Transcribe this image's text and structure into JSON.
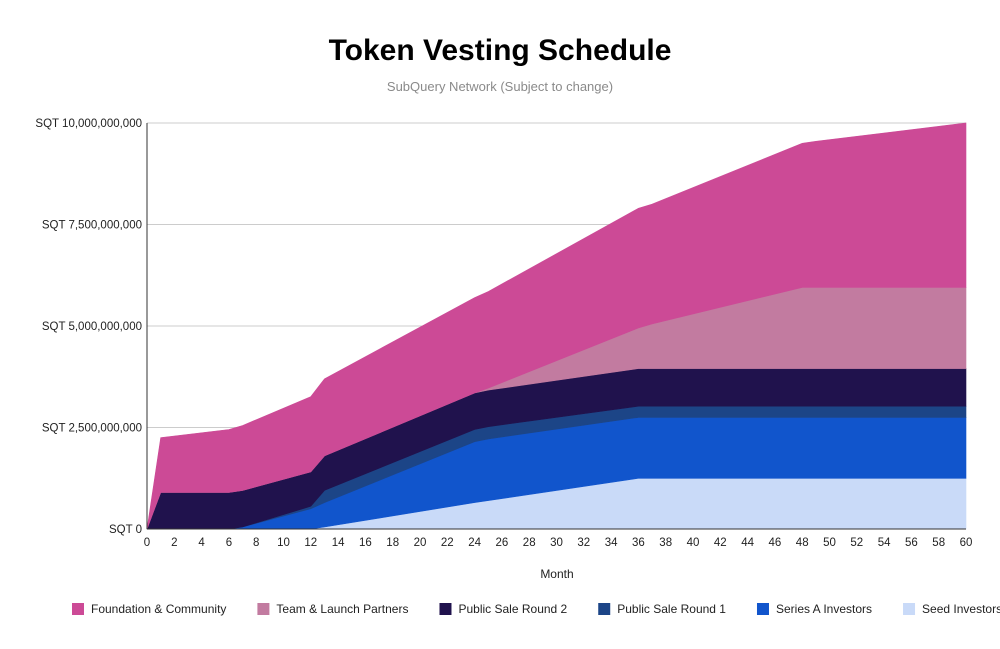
{
  "chart_data": {
    "type": "area",
    "stacked": true,
    "title": "Token Vesting Schedule",
    "subtitle": "SubQuery Network (Subject to change)",
    "xlabel": "Month",
    "ylabel": "",
    "xlim": [
      0,
      60
    ],
    "ylim": [
      0,
      10000000000
    ],
    "x_ticks": [
      0,
      2,
      4,
      6,
      8,
      10,
      12,
      14,
      16,
      18,
      20,
      22,
      24,
      26,
      28,
      30,
      32,
      34,
      36,
      38,
      40,
      42,
      44,
      46,
      48,
      50,
      52,
      54,
      56,
      58,
      60
    ],
    "y_ticks": [
      {
        "value": 0,
        "label": "SQT 0"
      },
      {
        "value": 2500000000,
        "label": "SQT 2,500,000,000"
      },
      {
        "value": 5000000000,
        "label": "SQT 5,000,000,000"
      },
      {
        "value": 7500000000,
        "label": "SQT 7,500,000,000"
      },
      {
        "value": 10000000000,
        "label": "SQT 10,000,000,000"
      }
    ],
    "grid": true,
    "legend_position": "bottom",
    "x": [
      0,
      1,
      6,
      7,
      12,
      13,
      24,
      25,
      36,
      37,
      48,
      49,
      60
    ],
    "series": [
      {
        "name": "Seed Investors",
        "color": "#c9daf8",
        "values": [
          0,
          0,
          0,
          0,
          0,
          50000000,
          650000000,
          700000000,
          1250000000,
          1250000000,
          1250000000,
          1250000000,
          1250000000
        ]
      },
      {
        "name": "Series A Investors",
        "color": "#1155cc",
        "values": [
          0,
          0,
          0,
          50000000,
          500000000,
          600000000,
          1500000000,
          1520000000,
          1500000000,
          1500000000,
          1500000000,
          1500000000,
          1500000000
        ]
      },
      {
        "name": "Public Sale Round 1",
        "color": "#1c4587",
        "values": [
          0,
          0,
          0,
          0,
          60000000,
          300000000,
          300000000,
          300000000,
          275000000,
          275000000,
          275000000,
          275000000,
          275000000
        ]
      },
      {
        "name": "Public Sale Round 2",
        "color": "#20124d",
        "values": [
          0,
          900000000,
          900000000,
          900000000,
          850000000,
          850000000,
          900000000,
          900000000,
          925000000,
          925000000,
          925000000,
          925000000,
          925000000
        ]
      },
      {
        "name": "Team & Launch Partners",
        "color": "#c27ba0",
        "values": [
          0,
          0,
          0,
          0,
          0,
          0,
          0,
          50000000,
          1000000000,
          1100000000,
          2000000000,
          2000000000,
          2000000000
        ]
      },
      {
        "name": "Foundation & Community",
        "color": "#cc4a96",
        "values": [
          0,
          1350000000,
          1550000000,
          1600000000,
          1850000000,
          1900000000,
          2350000000,
          2380000000,
          2950000000,
          2950000000,
          3550000000,
          3600000000,
          4050000000
        ]
      }
    ]
  },
  "legend": {
    "items": [
      {
        "label": "Foundation & Community",
        "color": "#cc4a96"
      },
      {
        "label": "Team & Launch Partners",
        "color": "#c27ba0"
      },
      {
        "label": "Public Sale Round 2",
        "color": "#20124d"
      },
      {
        "label": "Public Sale Round 1",
        "color": "#1c4587"
      },
      {
        "label": "Series A Investors",
        "color": "#1155cc"
      },
      {
        "label": "Seed Investors",
        "color": "#c9daf8"
      }
    ]
  }
}
